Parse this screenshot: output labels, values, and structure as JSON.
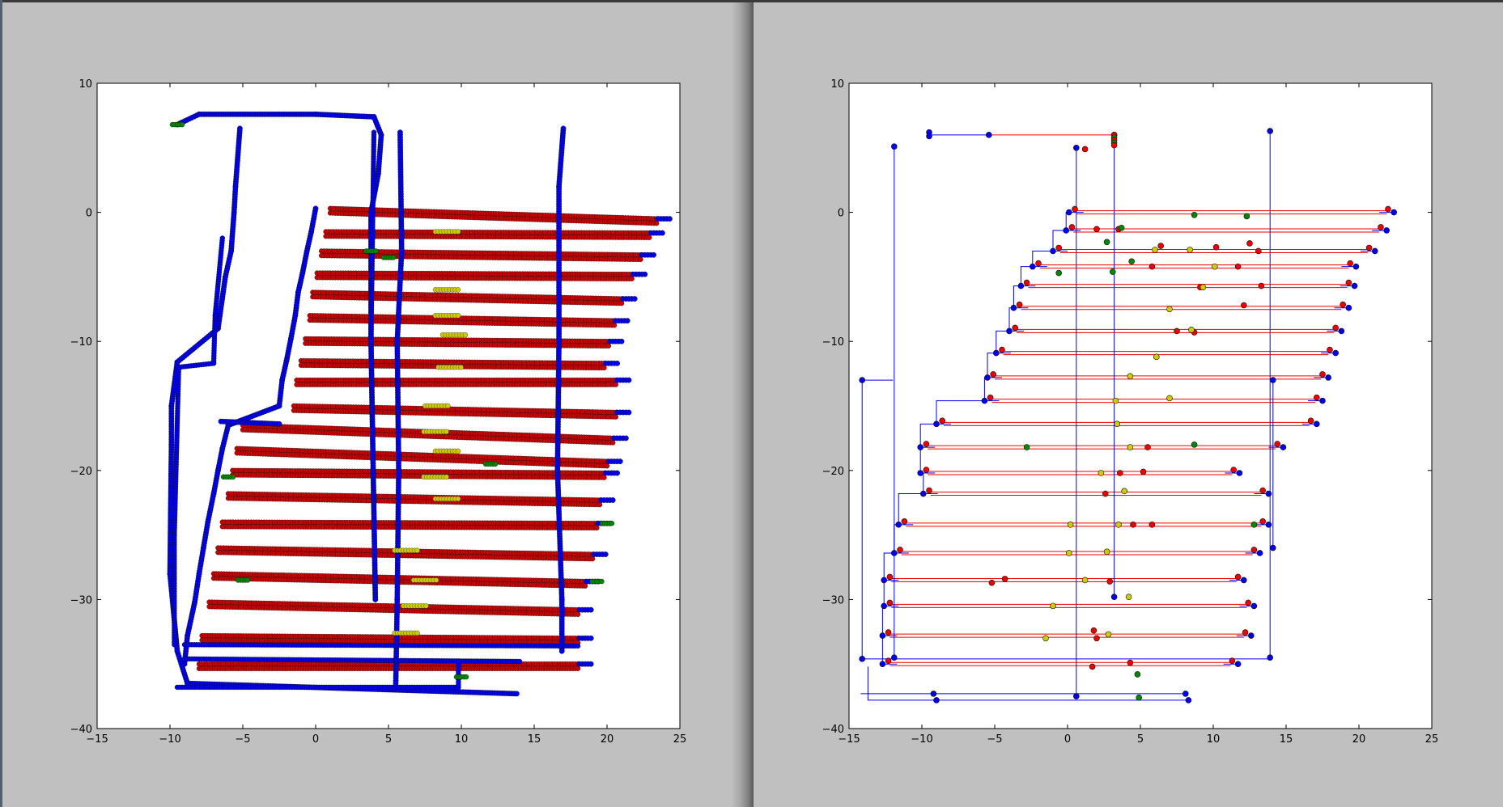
{
  "chart_data": [
    {
      "type": "scatter",
      "title": "",
      "xlabel": "",
      "ylabel": "",
      "xlim": [
        -15,
        25
      ],
      "ylim": [
        -40,
        10
      ],
      "xticks": [
        "−15",
        "−10",
        "−5",
        "0",
        "5",
        "10",
        "15",
        "20",
        "25"
      ],
      "yticks": [
        "−40",
        "−30",
        "−20",
        "−10",
        "0",
        "10"
      ],
      "grid": false,
      "colors": {
        "blue": "#0000ee",
        "red": "#cc0000",
        "green": "#008800",
        "yellow": "#cccc00"
      },
      "series": [
        {
          "color": "blue",
          "kind": "scan-rows-left-edge",
          "points": [
            [
              0,
              0.3
            ],
            [
              -0.3,
              -1.5
            ],
            [
              -0.6,
              -3
            ],
            [
              -0.9,
              -4.7
            ],
            [
              -1.2,
              -6.2
            ],
            [
              -1.4,
              -8
            ],
            [
              -1.7,
              -9.8
            ],
            [
              -2,
              -11.5
            ],
            [
              -2.3,
              -13
            ],
            [
              -2.5,
              -15
            ],
            [
              -6,
              -16.5
            ],
            [
              -6.4,
              -18.3
            ],
            [
              -6.7,
              -20
            ],
            [
              -7,
              -21.8
            ],
            [
              -7.4,
              -24
            ],
            [
              -7.7,
              -26
            ],
            [
              -8,
              -28
            ],
            [
              -8.3,
              -30.2
            ],
            [
              -8.8,
              -32.8
            ],
            [
              -9,
              -35
            ]
          ]
        },
        {
          "color": "blue",
          "kind": "vertical-tracks",
          "points": [
            [
              -9.5,
              6.8
            ],
            [
              -5.2,
              6.5
            ],
            [
              -5.6,
              0
            ],
            [
              -6.2,
              -5
            ],
            [
              -6.7,
              -9
            ],
            [
              -9.6,
              -12
            ],
            [
              -9.9,
              -18
            ],
            [
              -10,
              -28
            ],
            [
              -9.5,
              -34
            ],
            [
              4,
              6.2
            ],
            [
              3.8,
              -10
            ],
            [
              4.1,
              -30
            ],
            [
              5.8,
              6.2
            ],
            [
              5.6,
              -10
            ],
            [
              5.5,
              -36.5
            ],
            [
              17,
              6.5
            ],
            [
              16.7,
              -10
            ],
            [
              16.9,
              -34
            ]
          ]
        },
        {
          "color": "red",
          "kind": "scan-row-ends",
          "points": [
            [
              24,
              -0.5
            ],
            [
              23.5,
              -1.6
            ],
            [
              22.9,
              -3.3
            ],
            [
              22.3,
              -4.8
            ],
            [
              21.6,
              -6.7
            ],
            [
              21.1,
              -8.4
            ],
            [
              20.7,
              -10
            ],
            [
              20.4,
              -11.7
            ],
            [
              21.2,
              -13
            ],
            [
              21.2,
              -15.5
            ],
            [
              21,
              -17.5
            ],
            [
              20.6,
              -19.3
            ],
            [
              20.4,
              -20.2
            ],
            [
              20.1,
              -22.3
            ],
            [
              19.9,
              -24.1
            ],
            [
              19.6,
              -26.5
            ],
            [
              19.1,
              -28.6
            ],
            [
              18.6,
              -30.8
            ],
            [
              18.6,
              -33
            ],
            [
              18.6,
              -35
            ]
          ]
        },
        {
          "color": "green",
          "kind": "samples",
          "points": [
            [
              -9.5,
              6.8
            ],
            [
              3.8,
              -3
            ],
            [
              5,
              -3.5
            ],
            [
              12,
              -19.5
            ],
            [
              -6,
              -20.5
            ],
            [
              -5,
              -28.5
            ],
            [
              20,
              -24.1
            ],
            [
              19.3,
              -28.6
            ],
            [
              10,
              -36
            ]
          ]
        },
        {
          "color": "yellow",
          "kind": "samples",
          "points": [
            [
              9,
              -1.5
            ],
            [
              9,
              -6
            ],
            [
              9,
              -8
            ],
            [
              9.5,
              -9.5
            ],
            [
              9.2,
              -12
            ],
            [
              8.3,
              -15
            ],
            [
              8.2,
              -17
            ],
            [
              9,
              -18.5
            ],
            [
              8.2,
              -20.5
            ],
            [
              9,
              -22.2
            ],
            [
              6.2,
              -26.2
            ],
            [
              7.5,
              -28.5
            ],
            [
              6.8,
              -30.5
            ],
            [
              6.2,
              -32.6
            ]
          ]
        }
      ]
    },
    {
      "type": "line",
      "title": "",
      "xlabel": "",
      "ylabel": "",
      "xlim": [
        -15,
        25
      ],
      "ylim": [
        -40,
        10
      ],
      "xticks": [
        "−15",
        "−10",
        "−5",
        "0",
        "5",
        "10",
        "15",
        "20",
        "25"
      ],
      "yticks": [
        "−40",
        "−30",
        "−20",
        "−10",
        "0",
        "10"
      ],
      "grid": false,
      "colors": {
        "blue": "#0000ee",
        "red": "#ee0000",
        "green": "#008800",
        "yellow": "#cccc00"
      },
      "rows": [
        {
          "y": 0,
          "x0": 0.1,
          "x1": 22.4
        },
        {
          "y": -1.4,
          "x0": -0.1,
          "x1": 21.9
        },
        {
          "y": -3,
          "x0": -1,
          "x1": 21.1
        },
        {
          "y": -4.2,
          "x0": -2.4,
          "x1": 19.8
        },
        {
          "y": -5.7,
          "x0": -3.2,
          "x1": 19.7
        },
        {
          "y": -7.4,
          "x0": -3.7,
          "x1": 19.3
        },
        {
          "y": -9.2,
          "x0": -4,
          "x1": 18.8
        },
        {
          "y": -10.9,
          "x0": -4.9,
          "x1": 18.4
        },
        {
          "y": -12.8,
          "x0": -5.5,
          "x1": 17.9
        },
        {
          "y": -14.6,
          "x0": -5.7,
          "x1": 17.5
        },
        {
          "y": -16.4,
          "x0": -9,
          "x1": 17.1
        },
        {
          "y": -18.2,
          "x0": -10.1,
          "x1": 14.8
        },
        {
          "y": -20.2,
          "x0": -10.1,
          "x1": 11.8
        },
        {
          "y": -21.8,
          "x0": -9.9,
          "x1": 13.8
        },
        {
          "y": -24.2,
          "x0": -11.6,
          "x1": 13.8
        },
        {
          "y": -26.4,
          "x0": -11.9,
          "x1": 13.2
        },
        {
          "y": -28.5,
          "x0": -12.6,
          "x1": 12.1
        },
        {
          "y": -30.5,
          "x0": -12.6,
          "x1": 12.8
        },
        {
          "y": -32.8,
          "x0": -12.7,
          "x1": 12.6
        },
        {
          "y": -35,
          "x0": -12.7,
          "x1": 11.7
        }
      ],
      "verticals": [
        {
          "x": -11.9,
          "y0": 5.1,
          "y1": -34.5
        },
        {
          "x": -14.1,
          "y0": -13,
          "y1": -34.6
        },
        {
          "x": 0.6,
          "y0": 5,
          "y1": -37.5
        },
        {
          "x": 3.2,
          "y0": 6,
          "y1": -29.8
        },
        {
          "x": 13.9,
          "y0": 6.3,
          "y1": -34.5
        },
        {
          "x": 14.1,
          "y0": -13,
          "y1": -26
        }
      ],
      "top_segment": {
        "y": 6,
        "x0": -9.5,
        "x1": 3.2
      },
      "bottom_segment": {
        "y": -37.8,
        "x0": -9,
        "x1": 8.3
      },
      "samples_red": [
        [
          1.2,
          4.9
        ],
        [
          2,
          -1.3
        ],
        [
          3.5,
          -1.3
        ],
        [
          6.4,
          -2.6
        ],
        [
          10.2,
          -2.7
        ],
        [
          12.5,
          -2.4
        ],
        [
          13.1,
          -3
        ],
        [
          5.8,
          -4.2
        ],
        [
          11.7,
          -4.2
        ],
        [
          9.1,
          -5.8
        ],
        [
          13.3,
          -5.7
        ],
        [
          12.1,
          -7.2
        ],
        [
          8.7,
          -9.3
        ],
        [
          7.5,
          -9.2
        ],
        [
          5.5,
          -18.2
        ],
        [
          5.2,
          -20.1
        ],
        [
          3.6,
          -20.2
        ],
        [
          2.6,
          -21.8
        ],
        [
          5.8,
          -24.2
        ],
        [
          4.5,
          -24.2
        ],
        [
          2.9,
          -28.6
        ],
        [
          -5.2,
          -28.7
        ],
        [
          -4.3,
          -28.4
        ],
        [
          1.8,
          -32.4
        ],
        [
          2,
          -33
        ],
        [
          1.7,
          -35.2
        ],
        [
          4.3,
          -34.9
        ]
      ],
      "samples_green": [
        [
          8.7,
          -0.2
        ],
        [
          12.3,
          -0.3
        ],
        [
          3.7,
          -1.2
        ],
        [
          2.7,
          -2.3
        ],
        [
          4.4,
          -3.8
        ],
        [
          3.1,
          -4.6
        ],
        [
          -0.6,
          -4.7
        ],
        [
          -2.8,
          -18.2
        ],
        [
          8.7,
          -18
        ],
        [
          12.8,
          -24.2
        ],
        [
          4.8,
          -35.8
        ],
        [
          4.9,
          -37.6
        ]
      ],
      "samples_yellow": [
        [
          6,
          -2.9
        ],
        [
          8.4,
          -2.9
        ],
        [
          10.1,
          -4.2
        ],
        [
          9.3,
          -5.8
        ],
        [
          7,
          -7.5
        ],
        [
          8.5,
          -9.1
        ],
        [
          6.1,
          -11.2
        ],
        [
          4.3,
          -12.7
        ],
        [
          3.3,
          -14.6
        ],
        [
          7,
          -14.4
        ],
        [
          3.4,
          -16.4
        ],
        [
          4.3,
          -18.2
        ],
        [
          2.3,
          -20.2
        ],
        [
          3.9,
          -21.6
        ],
        [
          0.2,
          -24.2
        ],
        [
          3.5,
          -24.2
        ],
        [
          0.1,
          -26.4
        ],
        [
          2.7,
          -26.3
        ],
        [
          1.2,
          -28.5
        ],
        [
          -1,
          -30.5
        ],
        [
          -1.5,
          -33
        ],
        [
          2.8,
          -32.7
        ],
        [
          4.2,
          -29.8
        ]
      ]
    }
  ]
}
